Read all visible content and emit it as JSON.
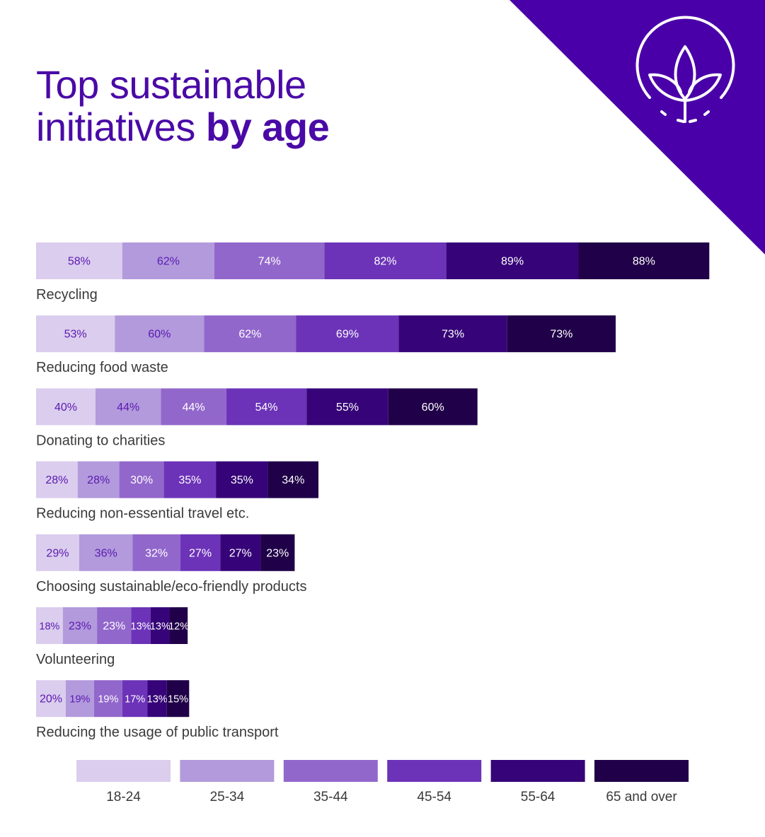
{
  "title": {
    "line1": "Top sustainable",
    "line2_regular": "initiatives ",
    "line2_bold": "by age"
  },
  "logo": {
    "icon": "leaf-plant-icon",
    "bg_color": "#4a00a8"
  },
  "colors": {
    "age_groups": [
      "#dbcdee",
      "#b29adc",
      "#9267cb",
      "#6c33b8",
      "#360478",
      "#200048"
    ],
    "title": "#4a0aa6",
    "label": "#3a3a3a",
    "value_dark": "#5a1ab0",
    "value_light": "#ffffff"
  },
  "chart_data": {
    "type": "bar",
    "orientation": "horizontal",
    "stacked": true,
    "categories": [
      "Recycling",
      "Reducing food waste",
      "Donating to charities",
      "Reducing non-essential travel etc.",
      "Choosing sustainable/eco-friendly products",
      "Volunteering",
      "Reducing the usage of public transport"
    ],
    "series": [
      {
        "name": "18-24",
        "values": [
          58,
          53,
          40,
          28,
          29,
          18,
          20
        ]
      },
      {
        "name": "25-34",
        "values": [
          62,
          60,
          44,
          28,
          36,
          23,
          19
        ]
      },
      {
        "name": "35-44",
        "values": [
          74,
          62,
          44,
          30,
          32,
          23,
          19
        ]
      },
      {
        "name": "45-54",
        "values": [
          82,
          69,
          54,
          35,
          27,
          13,
          17
        ]
      },
      {
        "name": "55-64",
        "values": [
          89,
          73,
          55,
          35,
          27,
          13,
          13
        ]
      },
      {
        "name": "65 and over",
        "values": [
          88,
          73,
          60,
          34,
          23,
          12,
          15
        ]
      }
    ],
    "value_suffix": "%",
    "legend_position": "bottom"
  }
}
